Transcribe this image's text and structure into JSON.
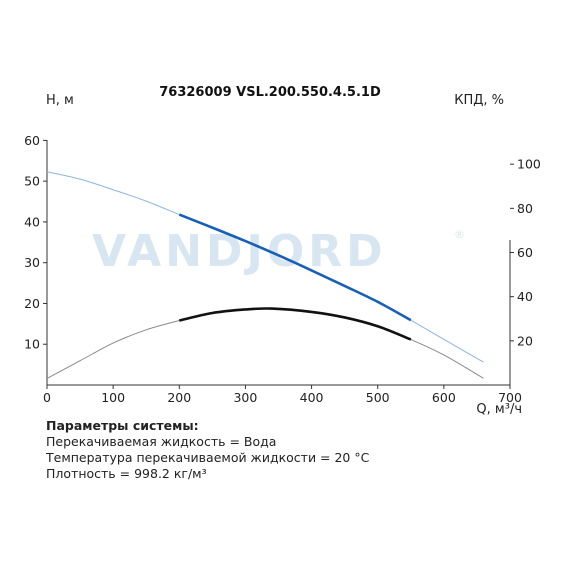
{
  "chart_data": {
    "type": "line",
    "title": "76326009 VSL.200.550.4.5.1D",
    "watermark": "VANDJORD",
    "watermark_mark": "®",
    "xlabel": "Q, м³/ч",
    "ylabel_left": "H, м",
    "ylabel_right": "КПД, %",
    "xlim": [
      0,
      700
    ],
    "ylim_left": [
      0,
      65
    ],
    "ylim_right": [
      0,
      120
    ],
    "x_ticks": [
      0,
      100,
      200,
      300,
      400,
      500,
      600,
      700
    ],
    "y_left_ticks": [
      10,
      20,
      30,
      40,
      50,
      60
    ],
    "y_right_ticks": [
      20,
      40,
      60,
      80,
      100
    ],
    "grid": false,
    "colors": {
      "head_curve": "#1a5fb4",
      "head_curve_extended": "#8fb4dc",
      "efficiency_curve": "#111111",
      "efficiency_curve_extended": "#8a8a8a",
      "axis": "#333333"
    },
    "series": [
      {
        "name": "",
        "axis": "left",
        "role": "head",
        "x": [
          0,
          50,
          100,
          150,
          200,
          250,
          300,
          350,
          400,
          450,
          500,
          550,
          600,
          660
        ],
        "y": [
          52.3,
          50.5,
          47.9,
          45.1,
          41.8,
          38.6,
          35.3,
          31.8,
          28.1,
          24.3,
          20.4,
          15.9,
          11.2,
          5.6
        ],
        "operating_range": [
          200,
          550
        ]
      },
      {
        "name": "",
        "axis": "right",
        "role": "efficiency",
        "x": [
          0,
          50,
          100,
          150,
          200,
          250,
          300,
          340,
          400,
          450,
          500,
          550,
          600,
          660
        ],
        "y": [
          3,
          11,
          19,
          25,
          29.2,
          32.6,
          34.2,
          34.6,
          33.1,
          30.6,
          26.6,
          20.6,
          13.6,
          3
        ],
        "operating_range": [
          200,
          550
        ]
      }
    ]
  },
  "system_params": {
    "title": "Параметры системы:",
    "lines": [
      "Перекачиваемая жидкость = Вода",
      "Температура перекачиваемой жидкости = 20 °C",
      "Плотность = 998.2 кг/м³"
    ]
  }
}
